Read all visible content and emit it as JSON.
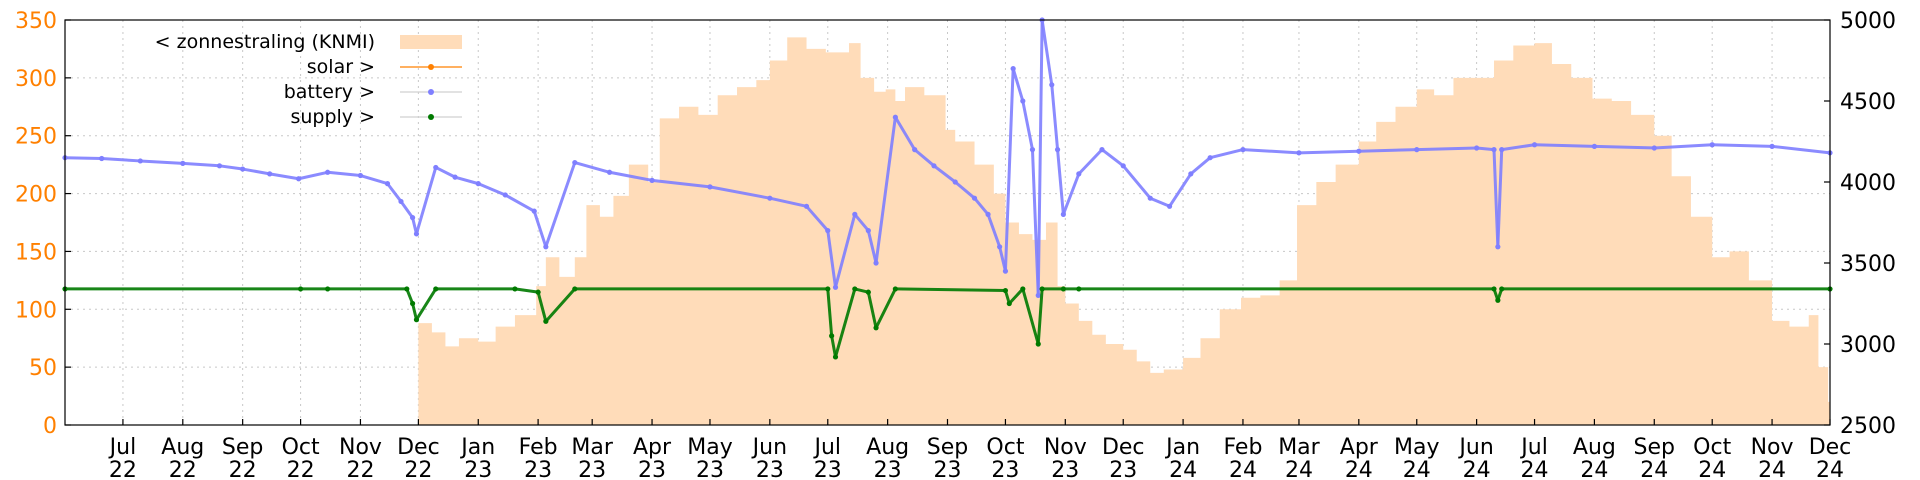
{
  "chart_data": {
    "type": "line",
    "title": "",
    "xlabel": "",
    "ylabel": "",
    "grid": true,
    "legend_position": "top-left",
    "colors": {
      "zonnestraling": "#ffdcb9",
      "solar": "#ff8000",
      "battery": "#7f7fff",
      "supply": "#007a00",
      "left_axis": "#ff8000",
      "right_axis": "#000000"
    },
    "x_range": [
      "2022-06-01",
      "2024-12-01"
    ],
    "x_ticks": [
      {
        "m": "Jul",
        "y": "22"
      },
      {
        "m": "Aug",
        "y": "22"
      },
      {
        "m": "Sep",
        "y": "22"
      },
      {
        "m": "Oct",
        "y": "22"
      },
      {
        "m": "Nov",
        "y": "22"
      },
      {
        "m": "Dec",
        "y": "22"
      },
      {
        "m": "Jan",
        "y": "23"
      },
      {
        "m": "Feb",
        "y": "23"
      },
      {
        "m": "Mar",
        "y": "23"
      },
      {
        "m": "Apr",
        "y": "23"
      },
      {
        "m": "May",
        "y": "23"
      },
      {
        "m": "Jun",
        "y": "23"
      },
      {
        "m": "Jul",
        "y": "23"
      },
      {
        "m": "Aug",
        "y": "23"
      },
      {
        "m": "Sep",
        "y": "23"
      },
      {
        "m": "Oct",
        "y": "23"
      },
      {
        "m": "Nov",
        "y": "23"
      },
      {
        "m": "Dec",
        "y": "23"
      },
      {
        "m": "Jan",
        "y": "24"
      },
      {
        "m": "Feb",
        "y": "24"
      },
      {
        "m": "Mar",
        "y": "24"
      },
      {
        "m": "Apr",
        "y": "24"
      },
      {
        "m": "May",
        "y": "24"
      },
      {
        "m": "Jun",
        "y": "24"
      },
      {
        "m": "Jul",
        "y": "24"
      },
      {
        "m": "Aug",
        "y": "24"
      },
      {
        "m": "Sep",
        "y": "24"
      },
      {
        "m": "Oct",
        "y": "24"
      },
      {
        "m": "Nov",
        "y": "24"
      },
      {
        "m": "Dec",
        "y": "24"
      }
    ],
    "y_left": {
      "ticks": [
        0,
        50,
        100,
        150,
        200,
        250,
        300,
        350
      ],
      "range": [
        0,
        350
      ]
    },
    "y_right": {
      "ticks": [
        2500,
        3000,
        3500,
        4000,
        4500,
        5000
      ],
      "range": [
        2500,
        5000
      ]
    },
    "legend": [
      {
        "key": "zonnestraling",
        "label": "< zonnestraling (KNMI)",
        "style": "area"
      },
      {
        "key": "solar",
        "label": "solar >",
        "style": "line"
      },
      {
        "key": "battery",
        "label": "battery >",
        "style": "points"
      },
      {
        "key": "supply",
        "label": "supply >",
        "style": "points"
      }
    ],
    "series": [
      {
        "name": "< zonnestraling (KNMI)",
        "axis": "left",
        "type": "area",
        "points": [
          [
            "2022-11-30",
            0
          ],
          [
            "2022-12-01",
            88
          ],
          [
            "2022-12-08",
            80
          ],
          [
            "2022-12-15",
            68
          ],
          [
            "2022-12-22",
            75
          ],
          [
            "2023-01-01",
            72
          ],
          [
            "2023-01-10",
            85
          ],
          [
            "2023-01-20",
            95
          ],
          [
            "2023-01-31",
            120
          ],
          [
            "2023-02-05",
            145
          ],
          [
            "2023-02-12",
            128
          ],
          [
            "2023-02-20",
            145
          ],
          [
            "2023-02-26",
            190
          ],
          [
            "2023-03-05",
            180
          ],
          [
            "2023-03-12",
            198
          ],
          [
            "2023-03-20",
            225
          ],
          [
            "2023-03-30",
            210
          ],
          [
            "2023-04-05",
            265
          ],
          [
            "2023-04-15",
            275
          ],
          [
            "2023-04-25",
            268
          ],
          [
            "2023-05-05",
            285
          ],
          [
            "2023-05-15",
            292
          ],
          [
            "2023-05-25",
            298
          ],
          [
            "2023-06-01",
            315
          ],
          [
            "2023-06-10",
            335
          ],
          [
            "2023-06-20",
            325
          ],
          [
            "2023-06-30",
            322
          ],
          [
            "2023-07-05",
            322
          ],
          [
            "2023-07-12",
            330
          ],
          [
            "2023-07-18",
            300
          ],
          [
            "2023-07-25",
            288
          ],
          [
            "2023-07-31",
            290
          ],
          [
            "2023-08-05",
            280
          ],
          [
            "2023-08-10",
            292
          ],
          [
            "2023-08-20",
            285
          ],
          [
            "2023-08-31",
            255
          ],
          [
            "2023-09-05",
            245
          ],
          [
            "2023-09-15",
            225
          ],
          [
            "2023-09-25",
            200
          ],
          [
            "2023-10-01",
            175
          ],
          [
            "2023-10-08",
            165
          ],
          [
            "2023-10-15",
            160
          ],
          [
            "2023-10-22",
            175
          ],
          [
            "2023-10-28",
            120
          ],
          [
            "2023-11-01",
            105
          ],
          [
            "2023-11-08",
            90
          ],
          [
            "2023-11-15",
            78
          ],
          [
            "2023-11-22",
            70
          ],
          [
            "2023-12-01",
            65
          ],
          [
            "2023-12-08",
            55
          ],
          [
            "2023-12-15",
            45
          ],
          [
            "2023-12-22",
            48
          ],
          [
            "2024-01-01",
            58
          ],
          [
            "2024-01-10",
            75
          ],
          [
            "2024-01-20",
            100
          ],
          [
            "2024-01-31",
            110
          ],
          [
            "2024-02-10",
            112
          ],
          [
            "2024-02-20",
            125
          ],
          [
            "2024-02-29",
            190
          ],
          [
            "2024-03-10",
            210
          ],
          [
            "2024-03-20",
            225
          ],
          [
            "2024-04-01",
            245
          ],
          [
            "2024-04-10",
            262
          ],
          [
            "2024-04-20",
            275
          ],
          [
            "2024-05-01",
            290
          ],
          [
            "2024-05-10",
            285
          ],
          [
            "2024-05-20",
            300
          ],
          [
            "2024-06-01",
            300
          ],
          [
            "2024-06-10",
            315
          ],
          [
            "2024-06-20",
            328
          ],
          [
            "2024-07-01",
            330
          ],
          [
            "2024-07-10",
            312
          ],
          [
            "2024-07-20",
            300
          ],
          [
            "2024-07-31",
            282
          ],
          [
            "2024-08-10",
            280
          ],
          [
            "2024-08-20",
            268
          ],
          [
            "2024-09-01",
            250
          ],
          [
            "2024-09-10",
            215
          ],
          [
            "2024-09-20",
            180
          ],
          [
            "2024-10-01",
            145
          ],
          [
            "2024-10-10",
            150
          ],
          [
            "2024-10-20",
            125
          ],
          [
            "2024-11-01",
            90
          ],
          [
            "2024-11-10",
            85
          ],
          [
            "2024-11-20",
            95
          ],
          [
            "2024-11-25",
            50
          ],
          [
            "2024-11-30",
            20
          ],
          [
            "2024-12-01",
            0
          ]
        ]
      },
      {
        "name": "battery >",
        "axis": "right",
        "type": "points",
        "points": [
          [
            "2022-06-01",
            4150
          ],
          [
            "2022-06-20",
            4145
          ],
          [
            "2022-07-10",
            4130
          ],
          [
            "2022-08-01",
            4115
          ],
          [
            "2022-08-20",
            4100
          ],
          [
            "2022-09-01",
            4080
          ],
          [
            "2022-09-15",
            4050
          ],
          [
            "2022-09-30",
            4020
          ],
          [
            "2022-10-15",
            4060
          ],
          [
            "2022-11-01",
            4040
          ],
          [
            "2022-11-15",
            3990
          ],
          [
            "2022-11-22",
            3880
          ],
          [
            "2022-11-28",
            3780
          ],
          [
            "2022-11-30",
            3680
          ],
          [
            "2022-12-10",
            4090
          ],
          [
            "2022-12-20",
            4030
          ],
          [
            "2023-01-01",
            3990
          ],
          [
            "2023-01-15",
            3920
          ],
          [
            "2023-01-30",
            3820
          ],
          [
            "2023-02-05",
            3600
          ],
          [
            "2023-02-20",
            4120
          ],
          [
            "2023-03-10",
            4060
          ],
          [
            "2023-04-01",
            4010
          ],
          [
            "2023-05-01",
            3970
          ],
          [
            "2023-06-01",
            3900
          ],
          [
            "2023-06-20",
            3850
          ],
          [
            "2023-07-01",
            3700
          ],
          [
            "2023-07-05",
            3350
          ],
          [
            "2023-07-15",
            3800
          ],
          [
            "2023-07-22",
            3700
          ],
          [
            "2023-07-26",
            3500
          ],
          [
            "2023-08-05",
            4400
          ],
          [
            "2023-08-15",
            4200
          ],
          [
            "2023-08-25",
            4100
          ],
          [
            "2023-09-05",
            4000
          ],
          [
            "2023-09-15",
            3900
          ],
          [
            "2023-09-22",
            3800
          ],
          [
            "2023-09-28",
            3600
          ],
          [
            "2023-10-01",
            3450
          ],
          [
            "2023-10-05",
            4700
          ],
          [
            "2023-10-10",
            4500
          ],
          [
            "2023-10-15",
            4200
          ],
          [
            "2023-10-18",
            3300
          ],
          [
            "2023-10-20",
            5000
          ],
          [
            "2023-10-25",
            4600
          ],
          [
            "2023-10-28",
            4200
          ],
          [
            "2023-10-31",
            3800
          ],
          [
            "2023-11-08",
            4050
          ],
          [
            "2023-11-20",
            4200
          ],
          [
            "2023-12-01",
            4100
          ],
          [
            "2023-12-15",
            3900
          ],
          [
            "2023-12-25",
            3850
          ],
          [
            "2024-01-05",
            4050
          ],
          [
            "2024-01-15",
            4150
          ],
          [
            "2024-02-01",
            4200
          ],
          [
            "2024-03-01",
            4180
          ],
          [
            "2024-04-01",
            4190
          ],
          [
            "2024-05-01",
            4200
          ],
          [
            "2024-06-01",
            4210
          ],
          [
            "2024-06-10",
            4200
          ],
          [
            "2024-06-12",
            3600
          ],
          [
            "2024-06-14",
            4200
          ],
          [
            "2024-07-01",
            4230
          ],
          [
            "2024-08-01",
            4220
          ],
          [
            "2024-09-01",
            4210
          ],
          [
            "2024-10-01",
            4230
          ],
          [
            "2024-11-01",
            4220
          ],
          [
            "2024-12-01",
            4180
          ]
        ]
      },
      {
        "name": "supply >",
        "axis": "right",
        "type": "points",
        "points": [
          [
            "2022-06-01",
            3340
          ],
          [
            "2022-10-01",
            3340
          ],
          [
            "2022-10-15",
            3340
          ],
          [
            "2022-11-25",
            3340
          ],
          [
            "2022-11-28",
            3250
          ],
          [
            "2022-11-30",
            3150
          ],
          [
            "2022-12-10",
            3340
          ],
          [
            "2023-01-20",
            3340
          ],
          [
            "2023-02-01",
            3320
          ],
          [
            "2023-02-05",
            3140
          ],
          [
            "2023-02-20",
            3340
          ],
          [
            "2023-07-01",
            3340
          ],
          [
            "2023-07-03",
            3050
          ],
          [
            "2023-07-05",
            2920
          ],
          [
            "2023-07-15",
            3340
          ],
          [
            "2023-07-22",
            3320
          ],
          [
            "2023-07-26",
            3100
          ],
          [
            "2023-08-05",
            3340
          ],
          [
            "2023-10-01",
            3330
          ],
          [
            "2023-10-03",
            3250
          ],
          [
            "2023-10-10",
            3340
          ],
          [
            "2023-10-18",
            3000
          ],
          [
            "2023-10-20",
            3340
          ],
          [
            "2023-10-31",
            3340
          ],
          [
            "2023-11-08",
            3340
          ],
          [
            "2024-06-10",
            3340
          ],
          [
            "2024-06-12",
            3270
          ],
          [
            "2024-06-14",
            3340
          ],
          [
            "2024-12-01",
            3340
          ]
        ]
      }
    ]
  }
}
